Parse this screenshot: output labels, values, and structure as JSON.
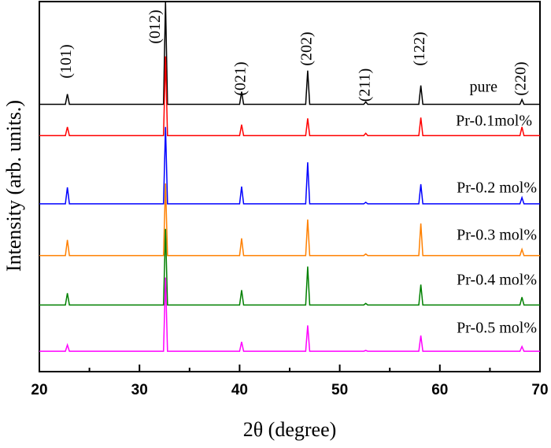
{
  "chart_data": {
    "type": "line",
    "xlabel": "2θ (degree)",
    "ylabel": "Intensity (arb. units.)",
    "x": [
      20,
      22.6,
      22.8,
      23.0,
      32.4,
      32.6,
      32.8,
      40.0,
      40.2,
      40.4,
      46.6,
      46.8,
      47.0,
      52.4,
      52.6,
      52.8,
      57.9,
      58.1,
      58.3,
      68.0,
      68.2,
      68.4,
      70
    ],
    "series": [
      {
        "name": "pure",
        "color": "#000000",
        "values": [
          341,
          341,
          354,
          341,
          341,
          472,
          341,
          341,
          357,
          341,
          341,
          384,
          341,
          341,
          344,
          341,
          341,
          365,
          341,
          341,
          347,
          341,
          341
        ]
      },
      {
        "name": "Pr-0.1mol%",
        "color": "#ff0000",
        "values": [
          301,
          301,
          312,
          301,
          301,
          402,
          301,
          301,
          315,
          301,
          301,
          323,
          301,
          301,
          304,
          301,
          301,
          324,
          301,
          301,
          312,
          301,
          301
        ]
      },
      {
        "name": "Pr-0.2 mol%",
        "color": "#0000ff",
        "values": [
          214,
          214,
          235,
          214,
          214,
          312,
          214,
          214,
          236,
          214,
          214,
          267,
          214,
          214,
          216,
          214,
          214,
          239,
          214,
          214,
          222,
          214,
          214
        ]
      },
      {
        "name": "Pr-0.3 mol%",
        "color": "#ff8000",
        "values": [
          148,
          148,
          168,
          148,
          148,
          240,
          148,
          148,
          170,
          148,
          148,
          194,
          148,
          148,
          150,
          148,
          148,
          189,
          148,
          148,
          156,
          148,
          148
        ]
      },
      {
        "name": "Pr-0.4 mol%",
        "color": "#008000",
        "values": [
          85,
          85,
          100,
          85,
          85,
          182,
          85,
          85,
          104,
          85,
          85,
          134,
          85,
          85,
          87,
          85,
          85,
          111,
          85,
          85,
          95,
          85,
          85
        ]
      },
      {
        "name": "Pr-0.5 mol%",
        "color": "#ff00ff",
        "values": [
          26,
          26,
          34,
          26,
          26,
          120,
          26,
          26,
          38,
          26,
          26,
          59,
          26,
          26,
          27,
          26,
          26,
          46,
          26,
          26,
          32,
          26,
          26
        ]
      }
    ],
    "peak_labels": [
      {
        "label": "(101)",
        "x": 22.8
      },
      {
        "label": "(012)",
        "x": 32.6
      },
      {
        "label": "(021)",
        "x": 40.2
      },
      {
        "label": "(202)",
        "x": 46.8
      },
      {
        "label": "(211)",
        "x": 52.6
      },
      {
        "label": "(122)",
        "x": 58.1
      },
      {
        "label": "(220)",
        "x": 68.2
      }
    ],
    "xlim": [
      20,
      70
    ],
    "ylim": [
      0,
      472
    ],
    "xticks": [
      20,
      30,
      40,
      50,
      60,
      70
    ],
    "xminorticks": [
      25,
      35,
      45,
      55,
      65
    ]
  }
}
